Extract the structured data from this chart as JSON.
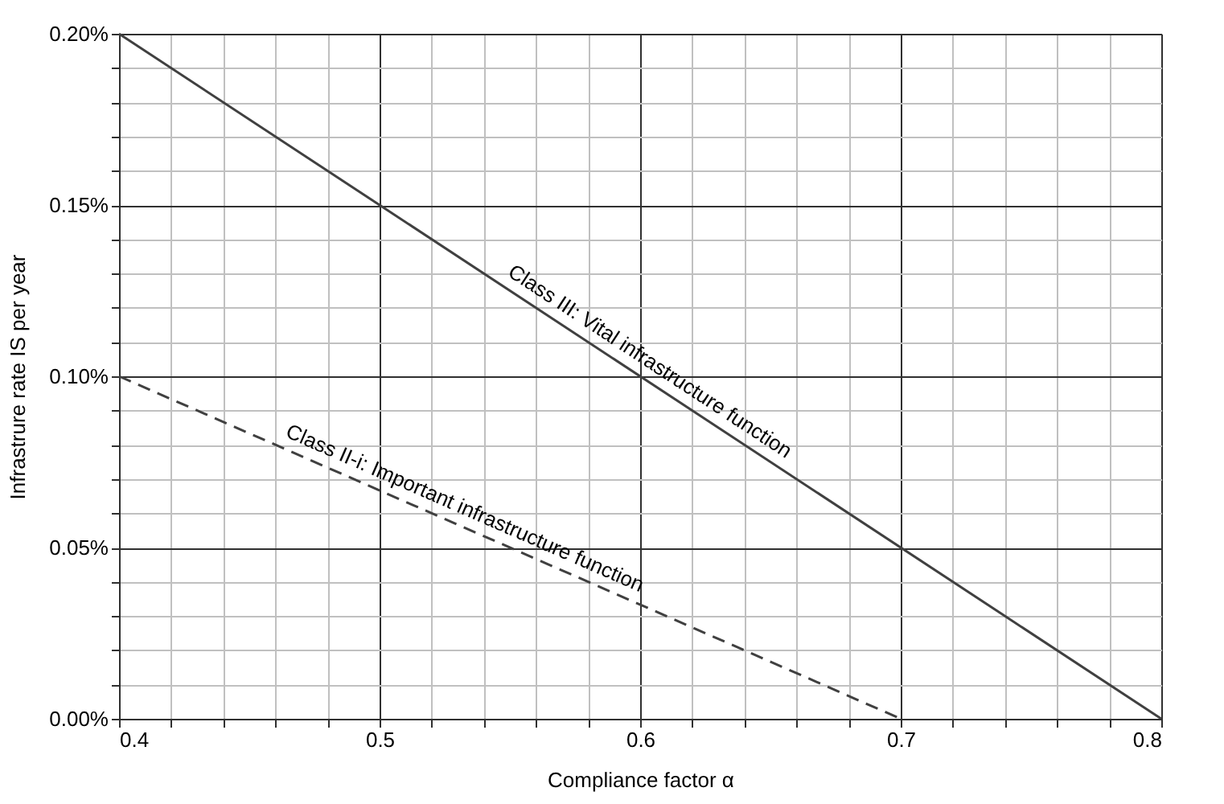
{
  "chart_data": {
    "type": "line",
    "xlabel": "Compliance factor α",
    "ylabel": "Infrastrure rate IS  per year",
    "series": [
      {
        "x": [
          0.4,
          0.8
        ],
        "values": [
          0.2,
          0
        ],
        "color": "#404040",
        "line_style": "solid"
      },
      {
        "x": [
          0.4,
          0.7
        ],
        "values": [
          0.1,
          0
        ],
        "color": "#404040",
        "line_style": "dashed"
      }
    ],
    "xlim": [
      0.4,
      0.8
    ],
    "xticks": [
      0.4,
      {
        "value": 0.42,
        "label": null
      },
      {
        "value": 0.44,
        "label": null
      },
      {
        "value": 0.46,
        "label": null
      },
      {
        "value": 0.48,
        "label": null
      },
      0.5,
      {
        "value": 0.52,
        "label": null
      },
      {
        "value": 0.54,
        "label": null
      },
      {
        "value": 0.56,
        "label": null
      },
      {
        "value": 0.58,
        "label": null
      },
      0.6,
      {
        "value": 0.62,
        "label": null
      },
      {
        "value": 0.64,
        "label": null
      },
      {
        "value": 0.66,
        "label": null
      },
      {
        "value": 0.68,
        "label": null
      },
      0.7,
      {
        "value": 0.72,
        "label": null
      },
      {
        "value": 0.74,
        "label": null
      },
      {
        "value": 0.76,
        "label": null
      },
      {
        "value": 0.78,
        "label": null
      },
      0.8
    ],
    "ylim": [
      0,
      0.2
    ],
    "yticks": [
      {
        "value": 0,
        "label": "0.00%"
      },
      {
        "value": 0.01,
        "label": null
      },
      {
        "value": 0.02,
        "label": null
      },
      {
        "value": 0.03,
        "label": null
      },
      {
        "value": 0.04,
        "label": null
      },
      {
        "value": 0.05,
        "label": "0.05%"
      },
      {
        "value": 0.06,
        "label": null
      },
      {
        "value": 0.07,
        "label": null
      },
      {
        "value": 0.08,
        "label": null
      },
      {
        "value": 0.09,
        "label": null
      },
      {
        "value": 0.1,
        "label": "0.10%"
      },
      {
        "value": 0.11,
        "label": null
      },
      {
        "value": 0.12,
        "label": null
      },
      {
        "value": 0.13,
        "label": null
      },
      {
        "value": 0.14,
        "label": null
      },
      {
        "value": 0.15,
        "label": "0.15%"
      },
      {
        "value": 0.16,
        "label": null
      },
      {
        "value": 0.17,
        "label": null
      },
      {
        "value": 0.18,
        "label": null
      },
      {
        "value": 0.19,
        "label": null
      },
      {
        "value": 0.2,
        "label": "0.20%"
      }
    ],
    "grid": true,
    "marker": "none",
    "annotations": [
      {
        "text": "Class III: Vital infrastructure function",
        "x": 0.6,
        "y": 0.1
      },
      {
        "text": "Class II-i: Important infrastructure function",
        "x": 0.53,
        "y": 0.0567
      }
    ]
  }
}
